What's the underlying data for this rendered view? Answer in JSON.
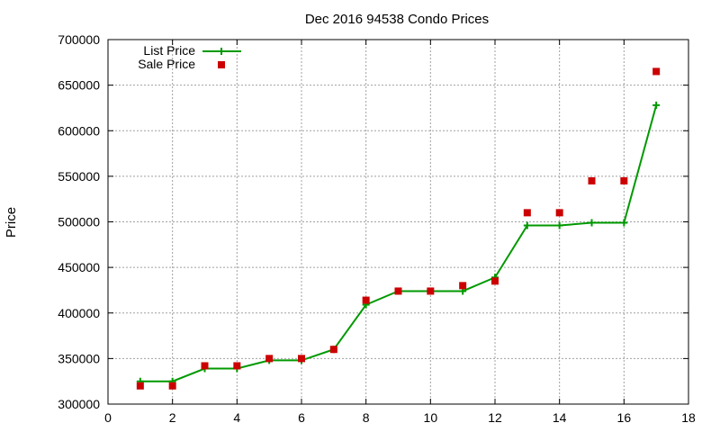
{
  "chart_data": {
    "type": "line",
    "title": "Dec 2016 94538 Condo Prices",
    "xlabel": "",
    "ylabel": "Price",
    "xlim": [
      0,
      18
    ],
    "ylim": [
      300000,
      700000
    ],
    "x_ticks": [
      0,
      2,
      4,
      6,
      8,
      10,
      12,
      14,
      16,
      18
    ],
    "y_ticks": [
      300000,
      350000,
      400000,
      450000,
      500000,
      550000,
      600000,
      650000,
      700000
    ],
    "grid": true,
    "legend_position": "top-left",
    "x": [
      1,
      2,
      3,
      4,
      5,
      6,
      7,
      8,
      9,
      10,
      11,
      12,
      13,
      14,
      15,
      16,
      17
    ],
    "series": [
      {
        "name": "List Price",
        "style": "line-with-plus-markers",
        "color": "#009900",
        "values": [
          325000,
          325000,
          339000,
          339000,
          348000,
          348000,
          360000,
          409000,
          424000,
          424000,
          424000,
          439000,
          496000,
          496000,
          499000,
          499000,
          628000
        ]
      },
      {
        "name": "Sale Price",
        "style": "square-markers",
        "color": "#cc0000",
        "values": [
          320000,
          320000,
          342000,
          342000,
          350000,
          350000,
          360000,
          414000,
          424000,
          424000,
          430000,
          435000,
          510000,
          510000,
          545000,
          545000,
          665000
        ]
      }
    ]
  }
}
